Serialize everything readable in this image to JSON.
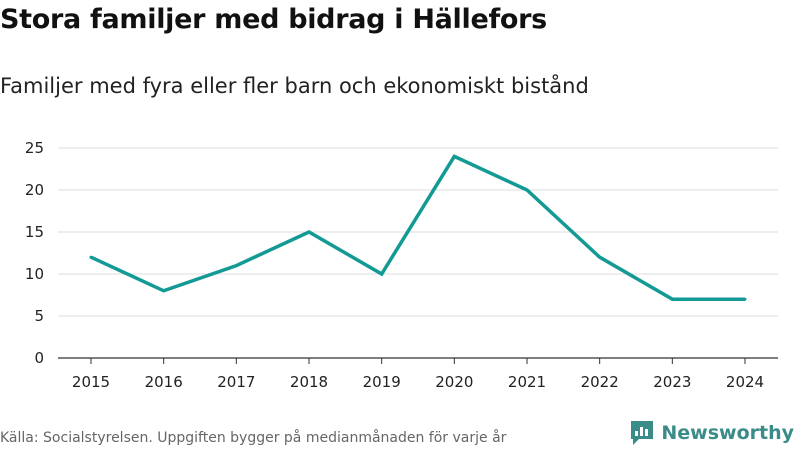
{
  "title": "Stora familjer med bidrag i Hällefors",
  "subtitle": "Familjer med fyra eller fler barn och ekonomiskt bistånd",
  "source": "Källa: Socialstyrelsen. Uppgiften bygger på medianmånaden för varje år",
  "brand": {
    "name": "Newsworthy",
    "icon": "newsworthy-logo-icon"
  },
  "colors": {
    "line": "#139a94",
    "grid": "#dddddd",
    "axis": "#333333",
    "brand": "#3a8c88"
  },
  "chart_data": {
    "type": "line",
    "title": "Stora familjer med bidrag i Hällefors",
    "subtitle": "Familjer med fyra eller fler barn och ekonomiskt bistånd",
    "xlabel": "",
    "ylabel": "",
    "x": [
      "2015",
      "2016",
      "2017",
      "2018",
      "2019",
      "2020",
      "2021",
      "2022",
      "2023",
      "2024"
    ],
    "series": [
      {
        "name": "Familjer",
        "values": [
          12,
          8,
          11,
          15,
          10,
          24,
          20,
          12,
          7,
          7
        ]
      }
    ],
    "ylim": [
      0,
      25
    ],
    "yticks": [
      0,
      5,
      10,
      15,
      20,
      25
    ],
    "grid": true
  }
}
